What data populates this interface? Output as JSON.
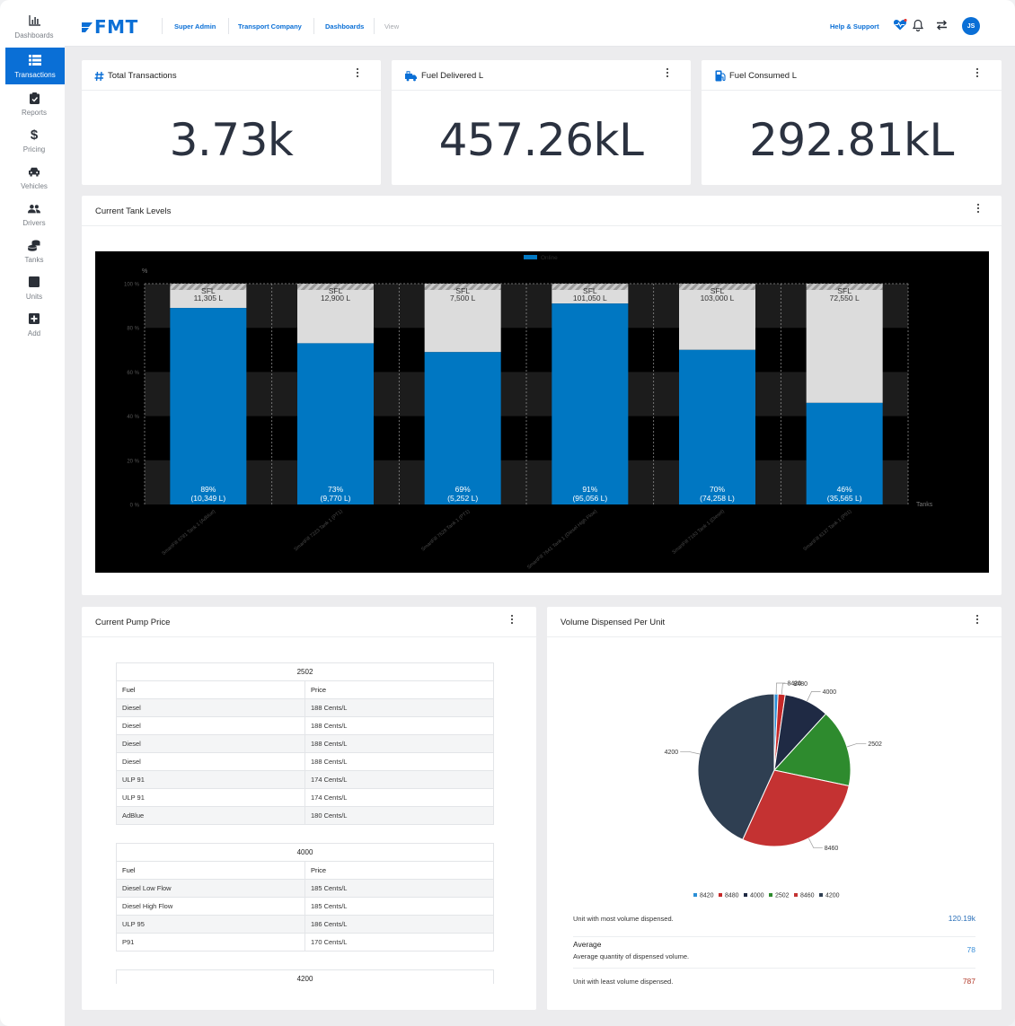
{
  "sidebar": {
    "items": [
      {
        "label": "Dashboards",
        "icon": "bar-chart-icon"
      },
      {
        "label": "Transactions",
        "icon": "list-icon"
      },
      {
        "label": "Reports",
        "icon": "clipboard-icon"
      },
      {
        "label": "Pricing",
        "icon": "dollar-icon"
      },
      {
        "label": "Vehicles",
        "icon": "car-icon"
      },
      {
        "label": "Drivers",
        "icon": "users-icon"
      },
      {
        "label": "Tanks",
        "icon": "coins-icon"
      },
      {
        "label": "Units",
        "icon": "square-icon"
      },
      {
        "label": "Add",
        "icon": "plus-square-icon"
      }
    ],
    "active_index": 1
  },
  "topbar": {
    "logo": "FMT",
    "breadcrumbs": [
      "Super Admin",
      "Transport Company",
      "Dashboards",
      "View"
    ],
    "help": "Help & Support",
    "avatar_initials": "JS"
  },
  "kpis": [
    {
      "title": "Total Transactions",
      "value": "3.73k",
      "icon": "hash-icon"
    },
    {
      "title": "Fuel Delivered L",
      "value": "457.26kL",
      "icon": "fuel-truck-icon"
    },
    {
      "title": "Fuel Consumed L",
      "value": "292.81kL",
      "icon": "gas-pump-icon"
    }
  ],
  "tank_card": {
    "title": "Current Tank Levels"
  },
  "chart_data": {
    "type": "bar",
    "title": "",
    "legend": [
      "Online"
    ],
    "legend_position": "top-center",
    "ylabel": "%",
    "xlabel": "Tanks",
    "ylim": [
      0,
      100
    ],
    "yticks": [
      "0 %",
      "20 %",
      "40 %",
      "60 %",
      "80 %",
      "100 %"
    ],
    "categories": [
      "SmartFill 6781 Tank 1 (Adblue)",
      "SmartFill 7223 Tank 1 (PT1)",
      "SmartFill 7628 Tank 1 (PT1)",
      "SmartFill 7641 Tank 1 (Diesel High Flow)",
      "SmartFill 7163 Tank 1 (Diesel)",
      "SmartFill 8137 Tank 1 (P91)"
    ],
    "series": [
      {
        "name": "Online",
        "values": [
          89,
          73,
          69,
          91,
          70,
          46
        ],
        "value_labels": [
          "89%",
          "73%",
          "69%",
          "91%",
          "70%",
          "46%"
        ],
        "volume_labels": [
          "(10,349 L)",
          "(9,770 L)",
          "(5,252 L)",
          "(95,056 L)",
          "(74,258 L)",
          "(35,565 L)"
        ]
      }
    ],
    "capacity_labels": [
      "SFL",
      "SFL",
      "SFL",
      "SFL",
      "SFL",
      "SFL"
    ],
    "capacities": [
      "11,305 L",
      "12,900 L",
      "7,500 L",
      "101,050 L",
      "103,000 L",
      "72,550 L"
    ],
    "grid": true,
    "colors": {
      "fill": "#0077c2",
      "empty": "#dcdcdc",
      "background": "#000000"
    }
  },
  "pump_card": {
    "title": "Current Pump Price",
    "tables": [
      {
        "unit": "2502",
        "headers": [
          "Fuel",
          "Price"
        ],
        "rows": [
          [
            "Diesel",
            "188 Cents/L"
          ],
          [
            "Diesel",
            "188 Cents/L"
          ],
          [
            "Diesel",
            "188 Cents/L"
          ],
          [
            "Diesel",
            "188 Cents/L"
          ],
          [
            "ULP 91",
            "174 Cents/L"
          ],
          [
            "ULP 91",
            "174 Cents/L"
          ],
          [
            "AdBlue",
            "180 Cents/L"
          ]
        ]
      },
      {
        "unit": "4000",
        "headers": [
          "Fuel",
          "Price"
        ],
        "rows": [
          [
            "Diesel Low Flow",
            "185 Cents/L"
          ],
          [
            "Diesel High Flow",
            "185 Cents/L"
          ],
          [
            "ULP 95",
            "186 Cents/L"
          ],
          [
            "P91",
            "170 Cents/L"
          ]
        ]
      },
      {
        "unit": "4200",
        "headers": [],
        "rows": []
      }
    ]
  },
  "volume_card": {
    "title": "Volume Dispensed Per Unit",
    "pie": {
      "type": "pie",
      "labels": [
        "8420",
        "8480",
        "4000",
        "2502",
        "8460",
        "4200"
      ],
      "values": [
        0.8,
        1.5,
        9.5,
        16.5,
        28.5,
        43.2
      ],
      "colors": [
        "#2a8ed6",
        "#c62828",
        "#1f2a44",
        "#2e8b2e",
        "#c43232",
        "#2f3f52"
      ]
    },
    "stats": [
      {
        "label": "Unit with most volume dispensed.",
        "value": "120.19k",
        "color": "#2a6fb8"
      },
      {
        "label": "Average",
        "sublabel": "Average quantity of dispensed volume.",
        "value": "78",
        "color": "#3a8fd9"
      },
      {
        "label": "Unit with least volume dispensed.",
        "value": "787",
        "color": "#b23a2a"
      }
    ]
  }
}
